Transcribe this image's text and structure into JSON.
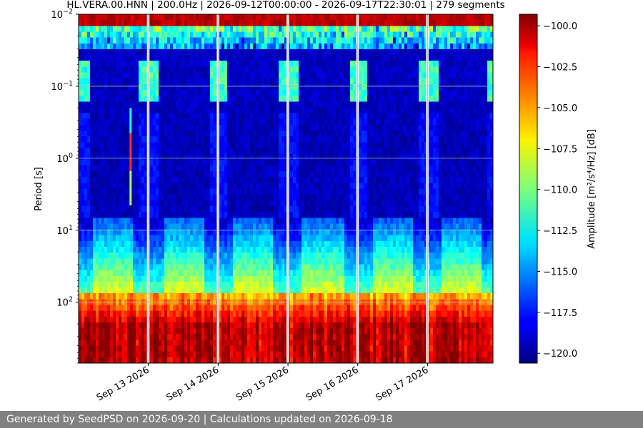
{
  "chart_data": {
    "type": "heatmap",
    "title": "HL.VERA.00.HNN | 200.0Hz | 2026-09-12T00:00:00 - 2026-09-17T22:30:01 | 279 segments",
    "ylabel": "Period [s]",
    "y_scale": "log",
    "y_inverted": true,
    "y_range": [
      0.01,
      700
    ],
    "y_ticks": [
      {
        "value": 0.01,
        "mantissa": "10",
        "exp": "−2"
      },
      {
        "value": 0.1,
        "mantissa": "10",
        "exp": "−1"
      },
      {
        "value": 1,
        "mantissa": "10",
        "exp": "0"
      },
      {
        "value": 10,
        "mantissa": "10",
        "exp": "1"
      },
      {
        "value": 100,
        "mantissa": "10",
        "exp": "2"
      }
    ],
    "x_range": [
      "2026-09-12T00:00:00",
      "2026-09-17T22:30:01"
    ],
    "x_ticks": [
      {
        "date": "2026-09-13",
        "label": "Sep 13 2026"
      },
      {
        "date": "2026-09-14",
        "label": "Sep 14 2026"
      },
      {
        "date": "2026-09-15",
        "label": "Sep 15 2026"
      },
      {
        "date": "2026-09-16",
        "label": "Sep 16 2026"
      },
      {
        "date": "2026-09-17",
        "label": "Sep 17 2026"
      }
    ],
    "gaps": [
      "2026-09-13T00:00:00",
      "2026-09-14T00:00:00",
      "2026-09-15T00:00:00",
      "2026-09-16T00:00:00",
      "2026-09-17T00:00:00"
    ],
    "grid": true,
    "colormap": "jet",
    "colorbar": {
      "label": "Amplitude [m²/s⁴/Hz] [dB]",
      "range": [
        -120.6,
        -99.3
      ],
      "ticks": [
        "−100.0",
        "−102.5",
        "−105.0",
        "−107.5",
        "−110.0",
        "−112.5",
        "−115.0",
        "−117.5",
        "−120.0"
      ],
      "tick_values": [
        -100,
        -102.5,
        -105,
        -107.5,
        -110,
        -112.5,
        -115,
        -117.5,
        -120
      ]
    }
  },
  "footer": {
    "text": "Generated by SeedPSD on 2026-09-20 | Calculations updated on 2026-09-18"
  }
}
